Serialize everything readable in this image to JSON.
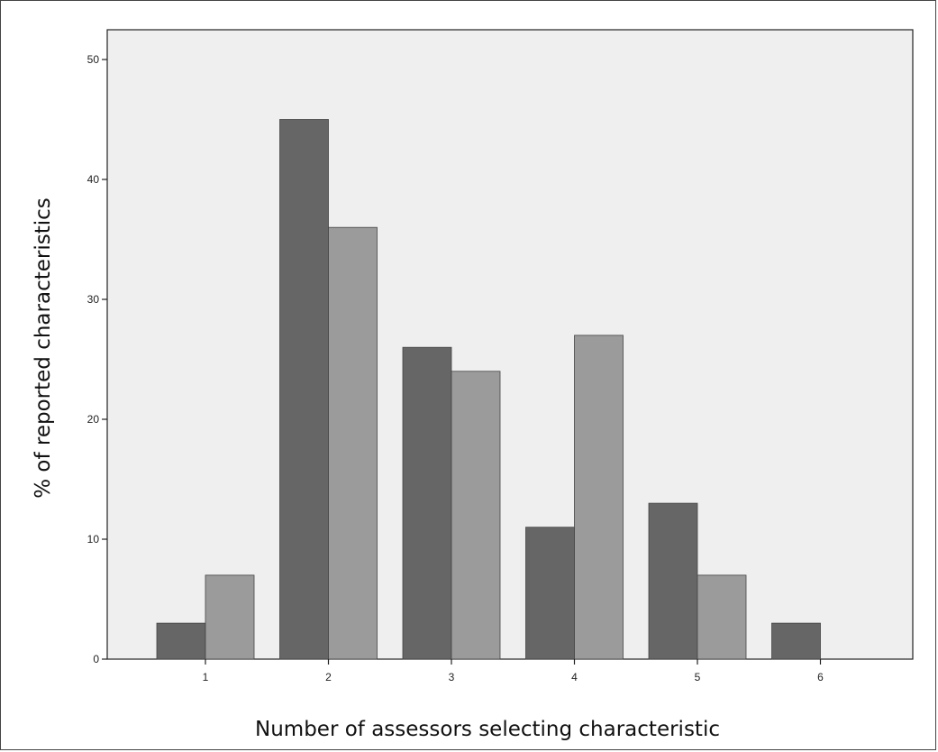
{
  "chart_data": {
    "type": "bar",
    "title": "",
    "xlabel": "Number of assessors selecting characteristic",
    "ylabel": "% of reported characteristics",
    "categories": [
      "1",
      "2",
      "3",
      "4",
      "5",
      "6"
    ],
    "series": [
      {
        "values": [
          3,
          45,
          26,
          11,
          13,
          3
        ]
      },
      {
        "values": [
          7,
          36,
          24,
          27,
          7,
          0
        ]
      }
    ],
    "ylim": [
      0,
      50
    ],
    "yticks": [
      "0",
      "10",
      "20",
      "30",
      "40",
      "50"
    ],
    "grid": false,
    "legend": "none",
    "colors": {
      "series_0": "#666666",
      "series_1": "#9b9b9b",
      "plot_background": "#efefef",
      "axis": "#222222"
    }
  }
}
